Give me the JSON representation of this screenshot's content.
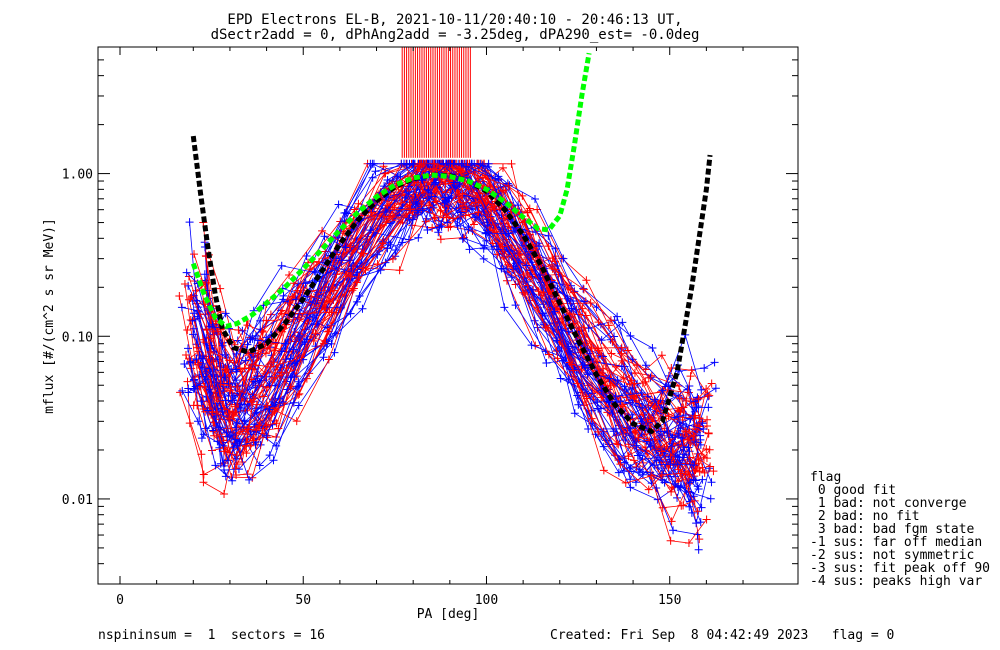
{
  "chart_data": {
    "type": "line",
    "title": "EPD Electrons EL-B, 2021-10-11/20:40:10 - 20:46:13 UT,",
    "subtitle": "dSectr2add = 0, dPhAng2add = -3.25deg, dPA290_est=  -0.0deg",
    "xlabel": "PA [deg]",
    "ylabel": "mflux [#/(cm^2 s sr MeV)]",
    "xlim": [
      -6,
      185
    ],
    "ylim": [
      0.003,
      6.0
    ],
    "yscale": "log",
    "grid": false,
    "x_ticks": [
      0,
      50,
      100,
      150
    ],
    "x_tick_labels": [
      "0",
      "50",
      "100",
      "150"
    ],
    "y_ticks": [
      0.01,
      0.1,
      1.0
    ],
    "y_tick_labels": [
      "0.01",
      "0.10",
      "1.00"
    ],
    "colors": {
      "red": "#ff0000",
      "blue": "#0000ff",
      "green": "#00ff00",
      "black": "#000000"
    },
    "series_template": {
      "pa": [
        21,
        24,
        27,
        31,
        35,
        40,
        47,
        55,
        63,
        72,
        80,
        84,
        88,
        92,
        97,
        103,
        110,
        117,
        124,
        131,
        138,
        144,
        150,
        155,
        158
      ],
      "profile": [
        0.12,
        0.07,
        0.045,
        0.035,
        0.04,
        0.055,
        0.09,
        0.17,
        0.32,
        0.6,
        0.85,
        0.95,
        0.95,
        0.9,
        0.8,
        0.55,
        0.32,
        0.17,
        0.09,
        0.05,
        0.032,
        0.025,
        0.022,
        0.02,
        0.02
      ]
    },
    "series": [
      {
        "color": "black",
        "style": "dashed-thick",
        "x": [
          20,
          22,
          24,
          26,
          28,
          31,
          35,
          40,
          45,
          50,
          55,
          60,
          65,
          70,
          75,
          80,
          85,
          90,
          95,
          100,
          105,
          110,
          115,
          120,
          125,
          130,
          135,
          140,
          145,
          148,
          152,
          156,
          160,
          161
        ],
        "y": [
          1.7,
          0.75,
          0.35,
          0.18,
          0.11,
          0.085,
          0.08,
          0.09,
          0.12,
          0.17,
          0.25,
          0.37,
          0.52,
          0.68,
          0.83,
          0.93,
          0.98,
          0.97,
          0.9,
          0.78,
          0.6,
          0.42,
          0.27,
          0.16,
          0.095,
          0.058,
          0.038,
          0.029,
          0.026,
          0.03,
          0.06,
          0.2,
          0.8,
          1.3
        ]
      },
      {
        "color": "green",
        "style": "dashed-thick",
        "x": [
          20,
          23,
          26,
          29,
          32,
          36,
          40,
          45,
          50,
          55,
          60,
          65,
          70,
          75,
          80,
          85,
          90,
          95,
          100,
          105,
          110,
          114,
          117,
          120,
          122,
          124,
          126,
          128
        ],
        "y": [
          0.28,
          0.18,
          0.13,
          0.115,
          0.12,
          0.135,
          0.16,
          0.2,
          0.26,
          0.34,
          0.45,
          0.58,
          0.72,
          0.85,
          0.94,
          0.98,
          0.96,
          0.9,
          0.8,
          0.67,
          0.54,
          0.46,
          0.45,
          0.55,
          0.8,
          1.5,
          3.0,
          5.5
        ]
      }
    ],
    "legend": {
      "position": "bottom-right",
      "title": "flag",
      "entries": [
        " 0 good fit",
        " 1 bad: not converge",
        " 2 bad: no fit",
        " 3 bad: bad fgm state",
        "-1 sus: far off median",
        "-2 sus: not symmetric",
        "-3 sus: fit peak off 90",
        "-4 sus: peaks high var"
      ]
    },
    "footer": {
      "left": "nspininsum =  1  sectors = 16",
      "right": "Created: Fri Sep  8 04:42:49 2023   flag = 0"
    }
  }
}
